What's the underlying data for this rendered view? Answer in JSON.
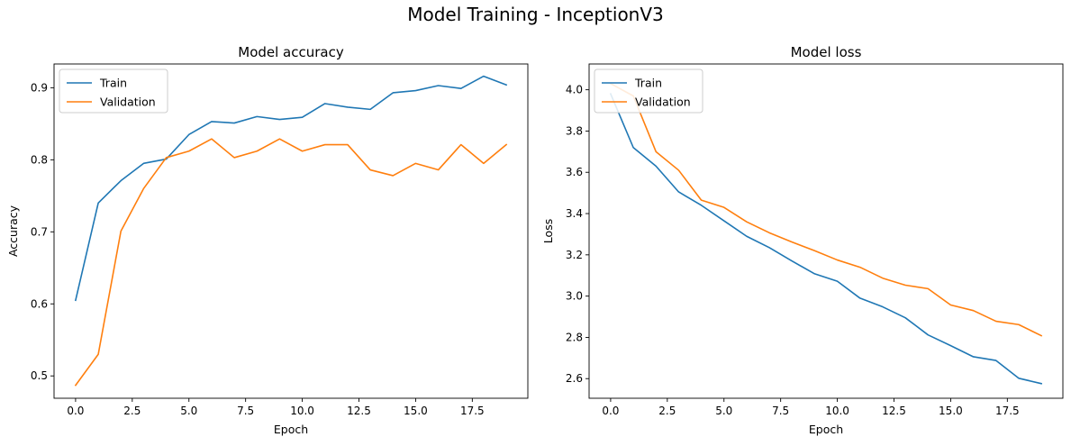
{
  "figure": {
    "suptitle": "Model Training - InceptionV3"
  },
  "chart_data": [
    {
      "type": "line",
      "title": "Model accuracy",
      "xlabel": "Epoch",
      "ylabel": "Accuracy",
      "xlim": [
        -0.95,
        19.95
      ],
      "ylim": [
        0.469,
        0.933
      ],
      "xticks": [
        0.0,
        2.5,
        5.0,
        7.5,
        10.0,
        12.5,
        15.0,
        17.5
      ],
      "xtick_labels": [
        "0.0",
        "2.5",
        "5.0",
        "7.5",
        "10.0",
        "12.5",
        "15.0",
        "17.5"
      ],
      "yticks": [
        0.5,
        0.6,
        0.7,
        0.8,
        0.9
      ],
      "ytick_labels": [
        "0.5",
        "0.6",
        "0.7",
        "0.8",
        "0.9"
      ],
      "grid": false,
      "legend": "upper left",
      "x": [
        0,
        1,
        2,
        3,
        4,
        5,
        6,
        7,
        8,
        9,
        10,
        11,
        12,
        13,
        14,
        15,
        16,
        17,
        18,
        19
      ],
      "series": [
        {
          "name": "Train",
          "color": "#1f77b4",
          "values": [
            0.605,
            0.74,
            0.771,
            0.795,
            0.801,
            0.835,
            0.853,
            0.851,
            0.86,
            0.856,
            0.859,
            0.878,
            0.873,
            0.87,
            0.893,
            0.896,
            0.903,
            0.899,
            0.916,
            0.904
          ]
        },
        {
          "name": "Validation",
          "color": "#ff7f0e",
          "values": [
            0.487,
            0.53,
            0.701,
            0.76,
            0.803,
            0.812,
            0.829,
            0.803,
            0.812,
            0.829,
            0.812,
            0.821,
            0.821,
            0.786,
            0.778,
            0.795,
            0.786,
            0.821,
            0.795,
            0.821
          ]
        }
      ]
    },
    {
      "type": "line",
      "title": "Model loss",
      "xlabel": "Epoch",
      "ylabel": "Loss",
      "xlim": [
        -0.95,
        19.95
      ],
      "ylim": [
        2.505,
        4.125
      ],
      "xticks": [
        0.0,
        2.5,
        5.0,
        7.5,
        10.0,
        12.5,
        15.0,
        17.5
      ],
      "xtick_labels": [
        "0.0",
        "2.5",
        "5.0",
        "7.5",
        "10.0",
        "12.5",
        "15.0",
        "17.5"
      ],
      "yticks": [
        2.6,
        2.8,
        3.0,
        3.2,
        3.4,
        3.6,
        3.8,
        4.0
      ],
      "ytick_labels": [
        "2.6",
        "2.8",
        "3.0",
        "3.2",
        "3.4",
        "3.6",
        "3.8",
        "4.0"
      ],
      "grid": false,
      "legend": "upper left",
      "x": [
        0,
        1,
        2,
        3,
        4,
        5,
        6,
        7,
        8,
        9,
        10,
        11,
        12,
        13,
        14,
        15,
        16,
        17,
        18,
        19
      ],
      "series": [
        {
          "name": "Train",
          "color": "#1f77b4",
          "values": [
            3.98,
            3.72,
            3.63,
            3.505,
            3.44,
            3.365,
            3.29,
            3.235,
            3.17,
            3.108,
            3.072,
            2.99,
            2.948,
            2.895,
            2.812,
            2.76,
            2.706,
            2.688,
            2.602,
            2.576
          ]
        },
        {
          "name": "Validation",
          "color": "#ff7f0e",
          "values": [
            4.03,
            3.97,
            3.7,
            3.61,
            3.465,
            3.43,
            3.36,
            3.307,
            3.262,
            3.22,
            3.175,
            3.14,
            3.087,
            3.053,
            3.036,
            2.957,
            2.93,
            2.878,
            2.862,
            2.808
          ]
        }
      ]
    }
  ]
}
